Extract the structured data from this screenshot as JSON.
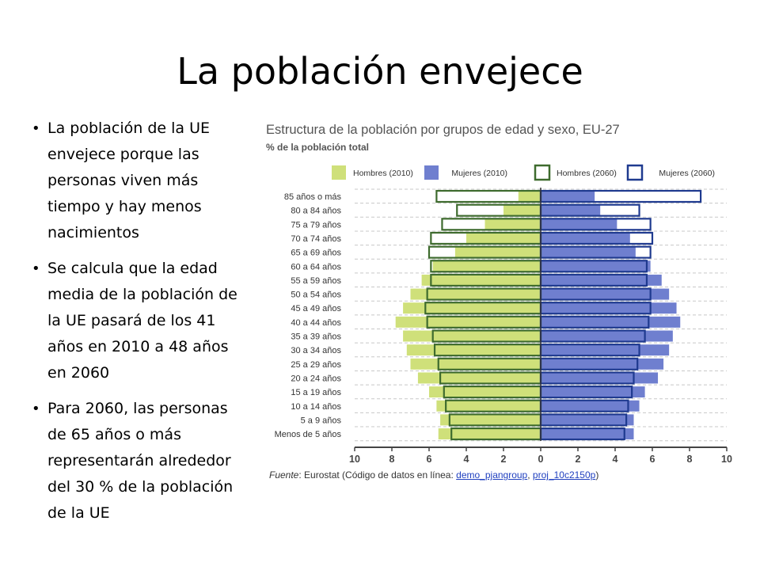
{
  "slide": {
    "title": "La población envejece",
    "bullets": [
      "La población de la UE envejece porque las personas viven más tiempo y hay menos nacimientos",
      "Se calcula que la edad media de la población de la UE pasará de los 41 años en 2010 a 48 años en 2060",
      "Para 2060, las personas de 65 años o más representarán alrededor del 30 % de la población de la UE"
    ]
  },
  "colors": {
    "hombres_2010": "#cfe07a",
    "mujeres_2010": "#6f7fcf",
    "hombres_2060": "#3e6b2e",
    "mujeres_2060": "#1f3a8f",
    "axis": "#444444",
    "grid": "#c8c8c8"
  },
  "chart_data": {
    "type": "bar",
    "orientation": "horizontal-population-pyramid",
    "title": "Estructura de la población por grupos de edad y sexo, EU-27",
    "subtitle": "% de la población total",
    "categories": [
      "85 años o más",
      "80 a 84 años",
      "75 a 79 años",
      "70 a 74 años",
      "65 a 69 años",
      "60 a 64 años",
      "55 a 59 años",
      "50 a 54 años",
      "45 a 49 años",
      "40 a 44 años",
      "35 a 39 años",
      "30 a 34 años",
      "25 a 29 años",
      "20 a 24 años",
      "15 a 19 años",
      "10 a 14 años",
      "5 a 9 años",
      "Menos de 5 años"
    ],
    "series": [
      {
        "name": "Hombres (2010)",
        "side": "left",
        "style": "filled",
        "values": [
          1.2,
          2.0,
          3.0,
          4.0,
          4.6,
          5.8,
          6.4,
          7.0,
          7.4,
          7.8,
          7.4,
          7.2,
          7.0,
          6.6,
          6.0,
          5.6,
          5.4,
          5.5
        ]
      },
      {
        "name": "Mujeres (2010)",
        "side": "right",
        "style": "filled",
        "values": [
          2.9,
          3.2,
          4.1,
          4.8,
          5.1,
          5.9,
          6.5,
          6.9,
          7.3,
          7.5,
          7.1,
          6.9,
          6.6,
          6.3,
          5.6,
          5.3,
          5.0,
          5.0
        ]
      },
      {
        "name": "Hombres (2060)",
        "side": "left",
        "style": "outline",
        "values": [
          5.6,
          4.5,
          5.3,
          5.9,
          6.0,
          5.9,
          5.9,
          6.1,
          6.2,
          6.1,
          5.8,
          5.7,
          5.5,
          5.4,
          5.2,
          5.1,
          4.9,
          4.8
        ]
      },
      {
        "name": "Mujeres (2060)",
        "side": "right",
        "style": "outline",
        "values": [
          8.6,
          5.3,
          5.9,
          6.0,
          5.9,
          5.7,
          5.7,
          5.9,
          5.9,
          5.8,
          5.6,
          5.3,
          5.2,
          5.0,
          4.9,
          4.7,
          4.6,
          4.5
        ]
      }
    ],
    "x_ticks": [
      "10",
      "8",
      "6",
      "4",
      "2",
      "0",
      "2",
      "4",
      "6",
      "8",
      "10"
    ],
    "xlim": [
      -10,
      10
    ],
    "grid": "horizontal-dashed",
    "legend_position": "top"
  },
  "source": {
    "label": "Fuente",
    "text": ": Eurostat (Código de datos en línea: ",
    "link1": "demo_pjangroup",
    "separator": ", ",
    "link2": "proj_10c2150p",
    "close": ")"
  }
}
